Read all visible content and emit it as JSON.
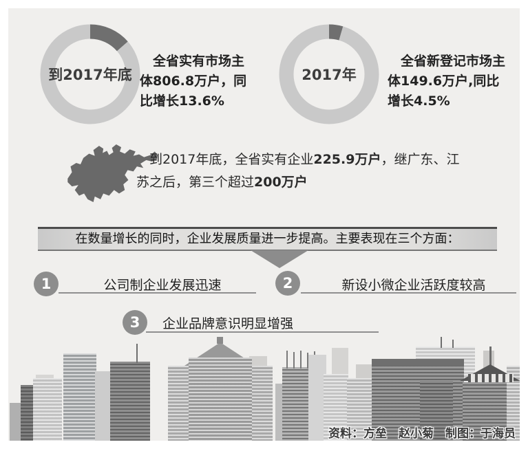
{
  "colors": {
    "canvas_bg": "#f0efed",
    "donut_ring": "#c9c9c9",
    "donut_segment": "#6f6f6f",
    "number_circle": "#8d8d8d",
    "map_fill": "#696969"
  },
  "chart_data": [
    {
      "type": "donut",
      "label": "到2017年底",
      "value_pct": 13.6,
      "value_text": "同比增长13.6%",
      "lines": [
        [
          {
            "t": "全省实有市场主"
          }
        ],
        [
          {
            "t": "体"
          },
          {
            "t": "806.8万户",
            "b": 1
          },
          {
            "t": "，同"
          }
        ],
        [
          {
            "t": "比增长"
          },
          {
            "t": "13.6%",
            "b": 1
          }
        ]
      ]
    },
    {
      "type": "donut",
      "label": "2017年",
      "value_pct": 4.5,
      "value_text": "同比增长4.5%",
      "lines": [
        [
          {
            "t": "全省新登记市场主"
          }
        ],
        [
          {
            "t": "体"
          },
          {
            "t": "149.6万户",
            "b": 1
          },
          {
            "t": ",同比"
          }
        ],
        [
          {
            "t": "增长"
          },
          {
            "t": "4.5%",
            "b": 1
          }
        ]
      ]
    }
  ],
  "map_note": {
    "lines": [
      [
        {
          "t": "到2017年底，全省实有企业"
        },
        {
          "t": "225.9万户",
          "b": 1
        },
        {
          "t": "，继广东、江"
        }
      ],
      [
        {
          "t": "苏之后，第三个超过"
        },
        {
          "t": "200万户",
          "b": 1
        }
      ]
    ]
  },
  "banner": {
    "text": "在数量增长的同时，企业发展质量进一步提高。主要表现在三个方面："
  },
  "points": [
    {
      "num": "1",
      "text": "公司制企业发展迅速"
    },
    {
      "num": "2",
      "text": "新设小微企业活跃度较高"
    },
    {
      "num": "3",
      "text": "企业品牌意识明显增强"
    }
  ],
  "credits": {
    "text": "资料：方垒　赵小菊　制图：于海员"
  }
}
